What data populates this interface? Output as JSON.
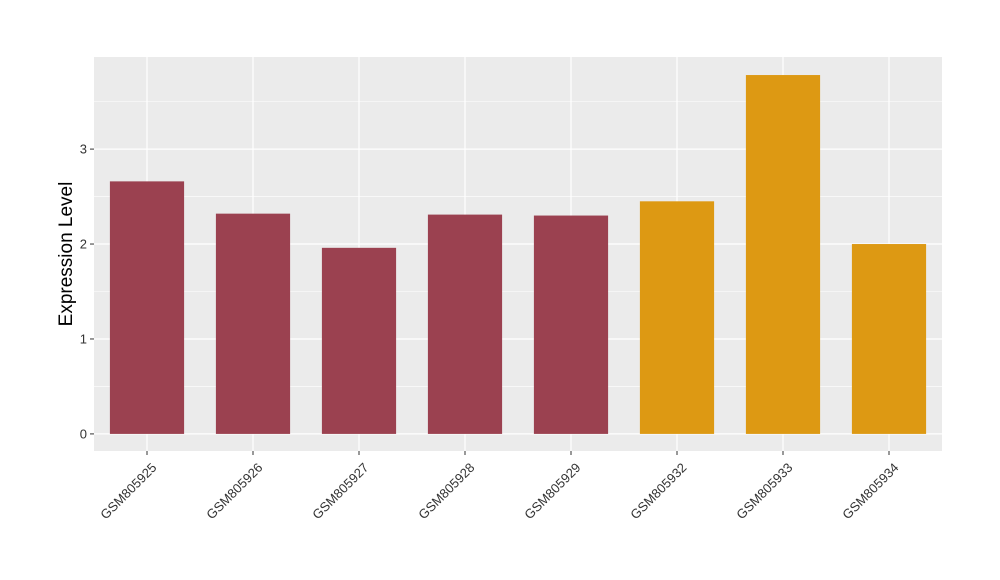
{
  "chart_data": {
    "type": "bar",
    "title": "",
    "xlabel": "",
    "ylabel": "Expression Level",
    "categories": [
      "GSM805925",
      "GSM805926",
      "GSM805927",
      "GSM805928",
      "GSM805929",
      "GSM805932",
      "GSM805933",
      "GSM805934"
    ],
    "values": [
      2.66,
      2.32,
      1.96,
      2.31,
      2.3,
      2.45,
      3.78,
      2.0
    ],
    "group_colors": [
      "#9b4150",
      "#9b4150",
      "#9b4150",
      "#9b4150",
      "#9b4150",
      "#dd9913",
      "#dd9913",
      "#dd9913"
    ],
    "yticks": [
      0,
      1,
      2,
      3
    ],
    "ylim": [
      -0.18,
      3.97
    ],
    "grid": true,
    "panel_background": "#ebebeb",
    "gridline_color": "#ffffff"
  }
}
